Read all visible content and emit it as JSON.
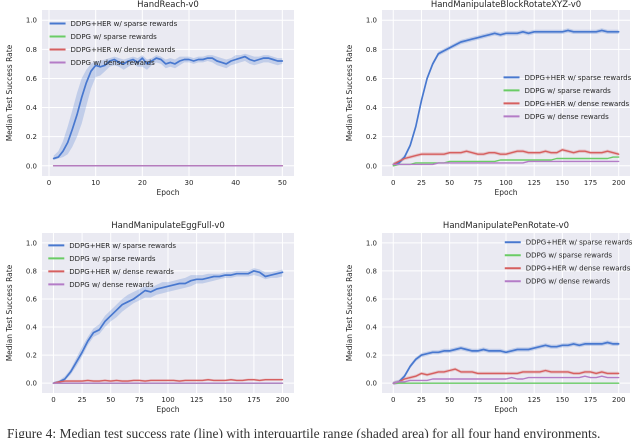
{
  "figure": {
    "caption": "Figure 4: Median test success rate (line) with interquartile range (shaded area) for all four hand environments."
  },
  "colors": {
    "page_bg": "#ffffff",
    "plot_bg": "#eaeaf2",
    "grid": "#ffffff",
    "text": "#262626",
    "blue": "#4878cf",
    "green": "#6acc65",
    "red": "#d65f5f",
    "purple": "#b47cc7"
  },
  "chart_data": [
    {
      "type": "line",
      "title": "HandReach-v0",
      "xlabel": "Epoch",
      "ylabel": "Median Test Success Rate",
      "xlim": [
        -1.5,
        52.5
      ],
      "xticks": [
        0,
        10,
        20,
        30,
        40,
        50
      ],
      "ylim": [
        -0.07,
        1.07
      ],
      "yticks": [
        0,
        0.2,
        0.4,
        0.6,
        0.8,
        1
      ],
      "grid": true,
      "legend_pos": "upper left",
      "legend": {
        "x": 0.03,
        "y": 0.045
      },
      "x": [
        1,
        2,
        3,
        4,
        5,
        6,
        7,
        8,
        9,
        10,
        11,
        12,
        13,
        14,
        15,
        16,
        17,
        18,
        19,
        20,
        21,
        22,
        23,
        24,
        25,
        26,
        27,
        28,
        29,
        30,
        31,
        32,
        33,
        34,
        35,
        36,
        37,
        38,
        39,
        40,
        41,
        42,
        43,
        44,
        45,
        46,
        47,
        48,
        49,
        50
      ],
      "series": [
        {
          "name": "DDPG+HER w/ sparse rewards",
          "color": "#4878cf",
          "lw": 1.7,
          "y": [
            0.05,
            0.06,
            0.1,
            0.16,
            0.25,
            0.35,
            0.47,
            0.57,
            0.65,
            0.69,
            0.68,
            0.69,
            0.72,
            0.73,
            0.71,
            0.7,
            0.72,
            0.73,
            0.71,
            0.74,
            0.7,
            0.72,
            0.74,
            0.73,
            0.7,
            0.71,
            0.7,
            0.72,
            0.73,
            0.73,
            0.72,
            0.73,
            0.73,
            0.74,
            0.74,
            0.72,
            0.71,
            0.7,
            0.72,
            0.73,
            0.74,
            0.75,
            0.73,
            0.72,
            0.73,
            0.74,
            0.74,
            0.73,
            0.72,
            0.72
          ],
          "lo": [
            0.04,
            0.05,
            0.06,
            0.08,
            0.13,
            0.2,
            0.29,
            0.41,
            0.53,
            0.61,
            0.62,
            0.65,
            0.68,
            0.69,
            0.68,
            0.66,
            0.68,
            0.7,
            0.68,
            0.68,
            0.66,
            0.69,
            0.71,
            0.7,
            0.67,
            0.68,
            0.67,
            0.69,
            0.71,
            0.71,
            0.7,
            0.71,
            0.71,
            0.72,
            0.71,
            0.69,
            0.68,
            0.67,
            0.69,
            0.7,
            0.71,
            0.72,
            0.7,
            0.69,
            0.7,
            0.71,
            0.71,
            0.7,
            0.69,
            0.7
          ],
          "hi": [
            0.07,
            0.1,
            0.17,
            0.27,
            0.38,
            0.5,
            0.6,
            0.66,
            0.7,
            0.72,
            0.72,
            0.73,
            0.74,
            0.75,
            0.74,
            0.73,
            0.74,
            0.75,
            0.74,
            0.76,
            0.73,
            0.74,
            0.76,
            0.75,
            0.73,
            0.74,
            0.73,
            0.75,
            0.75,
            0.75,
            0.74,
            0.75,
            0.75,
            0.76,
            0.76,
            0.75,
            0.74,
            0.73,
            0.74,
            0.76,
            0.76,
            0.77,
            0.76,
            0.75,
            0.75,
            0.76,
            0.76,
            0.75,
            0.74,
            0.74
          ]
        },
        {
          "name": "DDPG w/ sparse rewards",
          "color": "#6acc65",
          "x": [
            1,
            50
          ],
          "y": [
            0.0,
            0.0
          ]
        },
        {
          "name": "DDPG+HER w/ dense rewards",
          "color": "#d65f5f",
          "x": [
            1,
            50
          ],
          "y": [
            0.0,
            0.0
          ]
        },
        {
          "name": "DDPG w/ dense rewards",
          "color": "#b47cc7",
          "x": [
            1,
            50
          ],
          "y": [
            0.0,
            0.0
          ]
        }
      ]
    },
    {
      "type": "line",
      "title": "HandManipulateBlockRotateXYZ-v0",
      "xlabel": "Epoch",
      "ylabel": "Median Test Success Rate",
      "xlim": [
        -10,
        210
      ],
      "xticks": [
        0,
        25,
        50,
        75,
        100,
        125,
        150,
        175,
        200
      ],
      "ylim": [
        -0.07,
        1.07
      ],
      "yticks": [
        0,
        0.2,
        0.4,
        0.6,
        0.8,
        1
      ],
      "grid": true,
      "legend_pos": "center right",
      "legend": {
        "x": 0.49,
        "y": 0.37
      },
      "x": [
        0,
        5,
        10,
        15,
        20,
        25,
        30,
        35,
        40,
        45,
        50,
        55,
        60,
        65,
        70,
        75,
        80,
        85,
        90,
        95,
        100,
        105,
        110,
        115,
        120,
        125,
        130,
        135,
        140,
        145,
        150,
        155,
        160,
        165,
        170,
        175,
        180,
        185,
        190,
        195,
        200
      ],
      "series": [
        {
          "name": "DDPG+HER w/ sparse rewards",
          "color": "#4878cf",
          "lw": 1.7,
          "band": 0.015,
          "y": [
            0.01,
            0.02,
            0.06,
            0.14,
            0.27,
            0.45,
            0.6,
            0.7,
            0.77,
            0.79,
            0.81,
            0.83,
            0.85,
            0.86,
            0.87,
            0.88,
            0.89,
            0.9,
            0.91,
            0.9,
            0.91,
            0.91,
            0.91,
            0.92,
            0.91,
            0.92,
            0.92,
            0.92,
            0.92,
            0.92,
            0.92,
            0.93,
            0.92,
            0.92,
            0.92,
            0.92,
            0.92,
            0.93,
            0.92,
            0.92,
            0.92
          ]
        },
        {
          "name": "DDPG w/ sparse rewards",
          "color": "#6acc65",
          "y": [
            0.0,
            0.01,
            0.01,
            0.01,
            0.02,
            0.02,
            0.02,
            0.02,
            0.02,
            0.02,
            0.03,
            0.03,
            0.03,
            0.03,
            0.03,
            0.03,
            0.03,
            0.03,
            0.03,
            0.04,
            0.04,
            0.04,
            0.04,
            0.04,
            0.04,
            0.04,
            0.04,
            0.04,
            0.04,
            0.05,
            0.05,
            0.05,
            0.05,
            0.05,
            0.05,
            0.05,
            0.05,
            0.05,
            0.05,
            0.06,
            0.06
          ]
        },
        {
          "name": "DDPG+HER w/ dense rewards",
          "color": "#d65f5f",
          "band": 0.012,
          "y": [
            0.01,
            0.03,
            0.05,
            0.06,
            0.07,
            0.08,
            0.08,
            0.08,
            0.08,
            0.08,
            0.09,
            0.09,
            0.09,
            0.1,
            0.09,
            0.08,
            0.08,
            0.09,
            0.09,
            0.08,
            0.08,
            0.09,
            0.1,
            0.1,
            0.09,
            0.09,
            0.09,
            0.1,
            0.09,
            0.09,
            0.11,
            0.1,
            0.09,
            0.1,
            0.1,
            0.09,
            0.09,
            0.09,
            0.1,
            0.09,
            0.08
          ]
        },
        {
          "name": "DDPG w/ dense rewards",
          "color": "#b47cc7",
          "y": [
            0.01,
            0.01,
            0.01,
            0.01,
            0.01,
            0.01,
            0.01,
            0.01,
            0.02,
            0.02,
            0.02,
            0.02,
            0.02,
            0.02,
            0.02,
            0.02,
            0.02,
            0.02,
            0.02,
            0.02,
            0.02,
            0.02,
            0.02,
            0.02,
            0.03,
            0.03,
            0.03,
            0.03,
            0.03,
            0.03,
            0.03,
            0.03,
            0.03,
            0.03,
            0.03,
            0.03,
            0.03,
            0.03,
            0.03,
            0.03,
            0.03
          ]
        }
      ]
    },
    {
      "type": "line",
      "title": "HandManipulateEggFull-v0",
      "xlabel": "Epoch",
      "ylabel": "Median Test Success Rate",
      "xlim": [
        -10,
        210
      ],
      "xticks": [
        0,
        25,
        50,
        75,
        100,
        125,
        150,
        175,
        200
      ],
      "ylim": [
        -0.07,
        1.07
      ],
      "yticks": [
        0,
        0.2,
        0.4,
        0.6,
        0.8,
        1
      ],
      "grid": true,
      "legend_pos": "upper left",
      "legend": {
        "x": 0.025,
        "y": 0.04
      },
      "x": [
        0,
        5,
        10,
        15,
        20,
        25,
        30,
        35,
        40,
        45,
        50,
        55,
        60,
        65,
        70,
        75,
        80,
        85,
        90,
        95,
        100,
        105,
        110,
        115,
        120,
        125,
        130,
        135,
        140,
        145,
        150,
        155,
        160,
        165,
        170,
        175,
        180,
        185,
        190,
        195,
        200
      ],
      "series": [
        {
          "name": "DDPG+HER w/ sparse rewards",
          "color": "#4878cf",
          "lw": 1.7,
          "y": [
            0.0,
            0.01,
            0.03,
            0.08,
            0.15,
            0.22,
            0.3,
            0.36,
            0.38,
            0.44,
            0.48,
            0.52,
            0.56,
            0.58,
            0.6,
            0.63,
            0.66,
            0.65,
            0.67,
            0.68,
            0.69,
            0.7,
            0.71,
            0.71,
            0.73,
            0.74,
            0.74,
            0.75,
            0.76,
            0.76,
            0.77,
            0.77,
            0.78,
            0.78,
            0.78,
            0.8,
            0.79,
            0.76,
            0.77,
            0.78,
            0.79
          ],
          "lo": [
            0.0,
            0.0,
            0.02,
            0.06,
            0.12,
            0.19,
            0.27,
            0.33,
            0.35,
            0.4,
            0.44,
            0.47,
            0.51,
            0.54,
            0.57,
            0.59,
            0.61,
            0.61,
            0.63,
            0.64,
            0.65,
            0.66,
            0.67,
            0.68,
            0.69,
            0.71,
            0.71,
            0.72,
            0.73,
            0.74,
            0.75,
            0.75,
            0.76,
            0.76,
            0.76,
            0.77,
            0.76,
            0.74,
            0.75,
            0.75,
            0.76
          ],
          "hi": [
            0.01,
            0.02,
            0.05,
            0.1,
            0.18,
            0.26,
            0.33,
            0.39,
            0.42,
            0.48,
            0.52,
            0.56,
            0.6,
            0.63,
            0.65,
            0.67,
            0.69,
            0.68,
            0.7,
            0.72,
            0.72,
            0.73,
            0.74,
            0.75,
            0.77,
            0.77,
            0.77,
            0.78,
            0.78,
            0.78,
            0.79,
            0.79,
            0.8,
            0.8,
            0.8,
            0.82,
            0.81,
            0.79,
            0.79,
            0.8,
            0.81
          ]
        },
        {
          "name": "DDPG w/ sparse rewards",
          "color": "#6acc65",
          "x": [
            0,
            200
          ],
          "y": [
            0.0,
            0.0
          ]
        },
        {
          "name": "DDPG+HER w/ dense rewards",
          "color": "#d65f5f",
          "band": 0.008,
          "y": [
            0.0,
            0.01,
            0.015,
            0.015,
            0.015,
            0.015,
            0.02,
            0.015,
            0.015,
            0.02,
            0.015,
            0.02,
            0.015,
            0.015,
            0.02,
            0.02,
            0.015,
            0.02,
            0.02,
            0.02,
            0.02,
            0.02,
            0.015,
            0.02,
            0.02,
            0.02,
            0.02,
            0.025,
            0.02,
            0.02,
            0.02,
            0.025,
            0.02,
            0.02,
            0.025,
            0.025,
            0.02,
            0.025,
            0.025,
            0.025,
            0.025
          ]
        },
        {
          "name": "DDPG w/ dense rewards",
          "color": "#b47cc7",
          "x": [
            0,
            200
          ],
          "y": [
            0.0,
            0.0
          ]
        }
      ]
    },
    {
      "type": "line",
      "title": "HandManipulatePenRotate-v0",
      "xlabel": "Epoch",
      "ylabel": "Median Test Success Rate",
      "xlim": [
        -10,
        210
      ],
      "xticks": [
        0,
        25,
        50,
        75,
        100,
        125,
        150,
        175,
        200
      ],
      "ylim": [
        -0.07,
        1.07
      ],
      "yticks": [
        0,
        0.2,
        0.4,
        0.6,
        0.8,
        1
      ],
      "grid": true,
      "legend_pos": "upper right",
      "legend": {
        "x": 0.495,
        "y": 0.02
      },
      "x": [
        0,
        5,
        10,
        15,
        20,
        25,
        30,
        35,
        40,
        45,
        50,
        55,
        60,
        65,
        70,
        75,
        80,
        85,
        90,
        95,
        100,
        105,
        110,
        115,
        120,
        125,
        130,
        135,
        140,
        145,
        150,
        155,
        160,
        165,
        170,
        175,
        180,
        185,
        190,
        195,
        200
      ],
      "series": [
        {
          "name": "DDPG+HER w/ sparse rewards",
          "color": "#4878cf",
          "lw": 1.7,
          "band": 0.015,
          "y": [
            0.0,
            0.01,
            0.05,
            0.12,
            0.17,
            0.2,
            0.21,
            0.22,
            0.22,
            0.23,
            0.23,
            0.24,
            0.25,
            0.24,
            0.23,
            0.23,
            0.24,
            0.23,
            0.23,
            0.23,
            0.22,
            0.23,
            0.24,
            0.24,
            0.24,
            0.25,
            0.26,
            0.27,
            0.26,
            0.26,
            0.27,
            0.27,
            0.28,
            0.27,
            0.28,
            0.28,
            0.28,
            0.28,
            0.29,
            0.28,
            0.28
          ]
        },
        {
          "name": "DDPG w/ sparse rewards",
          "color": "#6acc65",
          "x": [
            0,
            200
          ],
          "y": [
            0.0,
            0.0
          ]
        },
        {
          "name": "DDPG+HER w/ dense rewards",
          "color": "#d65f5f",
          "band": 0.012,
          "y": [
            0.0,
            0.01,
            0.03,
            0.04,
            0.05,
            0.07,
            0.06,
            0.07,
            0.08,
            0.08,
            0.09,
            0.1,
            0.08,
            0.08,
            0.08,
            0.07,
            0.07,
            0.07,
            0.07,
            0.07,
            0.07,
            0.07,
            0.07,
            0.08,
            0.08,
            0.08,
            0.08,
            0.09,
            0.08,
            0.08,
            0.08,
            0.08,
            0.07,
            0.07,
            0.08,
            0.08,
            0.07,
            0.08,
            0.07,
            0.07,
            0.07
          ]
        },
        {
          "name": "DDPG w/ dense rewards",
          "color": "#b47cc7",
          "y": [
            0.0,
            0.01,
            0.01,
            0.02,
            0.02,
            0.02,
            0.02,
            0.03,
            0.03,
            0.03,
            0.03,
            0.03,
            0.03,
            0.03,
            0.03,
            0.03,
            0.03,
            0.03,
            0.03,
            0.03,
            0.03,
            0.04,
            0.03,
            0.03,
            0.04,
            0.04,
            0.04,
            0.04,
            0.04,
            0.04,
            0.04,
            0.04,
            0.04,
            0.04,
            0.05,
            0.04,
            0.04,
            0.05,
            0.04,
            0.04,
            0.04
          ]
        }
      ]
    }
  ]
}
